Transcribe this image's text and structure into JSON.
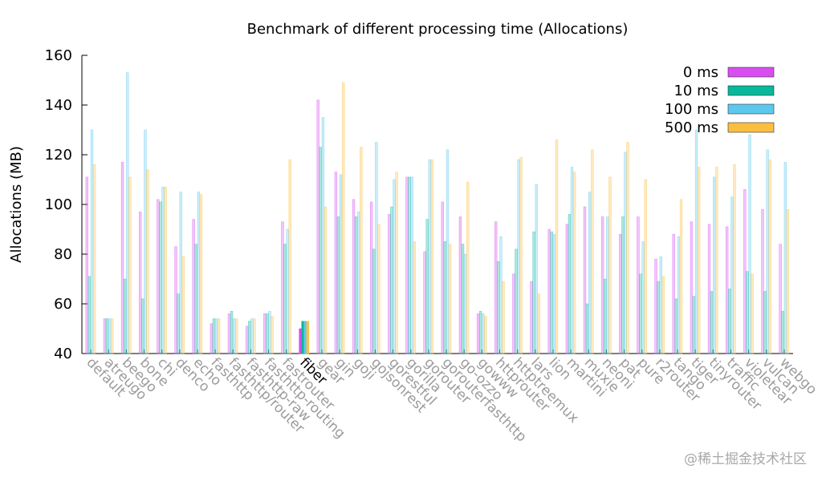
{
  "chart_data": {
    "type": "bar",
    "title": "Benchmark of different processing time (Allocations)",
    "xlabel": "",
    "ylabel": "Allocations (MB)",
    "ylim": [
      40,
      160
    ],
    "yticks": [
      40,
      60,
      80,
      100,
      120,
      140,
      160
    ],
    "grid": false,
    "legend_position": "top-right",
    "highlight_category": "fiber",
    "categories": [
      "default",
      "atreugo",
      "beego",
      "bone",
      "chi",
      "denco",
      "echo",
      "fasthttp",
      "fasthttp/router",
      "fasthttp-raw",
      "fasthttp-routing",
      "fastrouter",
      "fiber",
      "gear",
      "gin",
      "goji",
      "gojsonrest",
      "gorestful",
      "gorilla",
      "gorouter",
      "gorouterfasthttp",
      "go-ozzo",
      "gowww",
      "httprouter",
      "httptreemux",
      "lars",
      "lion",
      "martini",
      "muxie",
      "neoni",
      "pat",
      "pure",
      "r2router",
      "tango",
      "tiger",
      "tinyrouter",
      "traffic",
      "violetear",
      "vulcan",
      "webgo"
    ],
    "series": [
      {
        "name": "0 ms",
        "color": "#d84ef0",
        "values": [
          111,
          54,
          117,
          97,
          102,
          83,
          94,
          52,
          56,
          51,
          56,
          93,
          50,
          142,
          113,
          102,
          101,
          96,
          111,
          81,
          101,
          95,
          56,
          93,
          72,
          69,
          90,
          92,
          99,
          95,
          88,
          95,
          78,
          88,
          93,
          92,
          91,
          106,
          98,
          84
        ]
      },
      {
        "name": "10 ms",
        "color": "#08b89a",
        "values": [
          71,
          54,
          70,
          62,
          101,
          64,
          84,
          54,
          57,
          53,
          56,
          84,
          53,
          123,
          95,
          95,
          82,
          99,
          111,
          94,
          85,
          84,
          57,
          77,
          82,
          89,
          89,
          96,
          60,
          70,
          95,
          72,
          69,
          62,
          63,
          65,
          66,
          73,
          65,
          57
        ]
      },
      {
        "name": "100 ms",
        "color": "#5cc8ee",
        "values": [
          130,
          54,
          153,
          130,
          107,
          105,
          105,
          54,
          54,
          54,
          57,
          90,
          53,
          135,
          112,
          97,
          125,
          110,
          111,
          118,
          122,
          80,
          56,
          87,
          118,
          108,
          88,
          115,
          105,
          95,
          121,
          85,
          79,
          87,
          130,
          111,
          103,
          128,
          122,
          117
        ]
      },
      {
        "name": "500 ms",
        "color": "#fbbf3f",
        "values": [
          116,
          54,
          111,
          114,
          107,
          79,
          104,
          54,
          54,
          54,
          55,
          118,
          53,
          99,
          149,
          123,
          92,
          113,
          85,
          118,
          84,
          109,
          55,
          69,
          119,
          64,
          126,
          113,
          122,
          111,
          125,
          110,
          71,
          102,
          115,
          115,
          116,
          72,
          118,
          98
        ]
      }
    ]
  },
  "watermark": "@稀土掘金技术社区"
}
